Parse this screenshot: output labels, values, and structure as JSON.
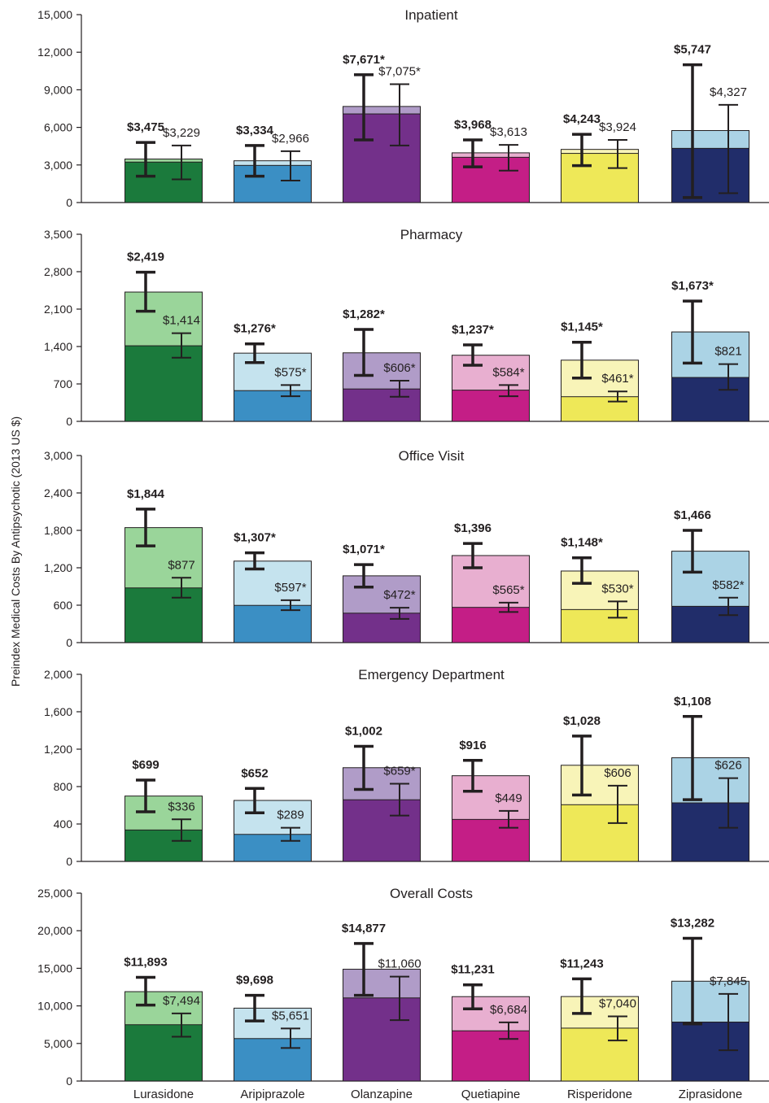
{
  "chart_data": {
    "type": "bar",
    "ylabel": "Preindex Medical Costs By Antipsychotic (2013 US $)",
    "categories": [
      "Lurasidone",
      "Aripiprazole",
      "Olanzapine",
      "Quetiapine",
      "Risperidone",
      "Ziprasidone"
    ],
    "colors": {
      "dark": [
        "#1b7a3c",
        "#3b8fc4",
        "#73308a",
        "#c41e86",
        "#eee858",
        "#212d6a"
      ],
      "light": [
        "#9ad59a",
        "#c5e3ee",
        "#b09cc8",
        "#e8afd0",
        "#f8f4b8",
        "#abd3e5"
      ]
    },
    "panels": [
      {
        "title": "Inpatient",
        "ylim": [
          0,
          15000
        ],
        "yticks": [
          "0",
          "3,000",
          "6,000",
          "9,000",
          "12,000",
          "15,000"
        ],
        "total_values": [
          3475,
          3334,
          7671,
          3968,
          4243,
          5747
        ],
        "total_labels": [
          "$3,475",
          "$3,334",
          "$7,671*",
          "$3,968",
          "$4,243",
          "$5,747"
        ],
        "total_ci": [
          [
            2100,
            4800
          ],
          [
            2100,
            4550
          ],
          [
            5000,
            10200
          ],
          [
            2850,
            5000
          ],
          [
            2950,
            5450
          ],
          [
            400,
            11000
          ]
        ],
        "median_values": [
          3229,
          2966,
          7075,
          3613,
          3924,
          4327
        ],
        "median_labels": [
          "$3,229",
          "$2,966",
          "$7,075*",
          "$3,613",
          "$3,924",
          "$4,327"
        ],
        "median_ci": [
          [
            1850,
            4550
          ],
          [
            1750,
            4100
          ],
          [
            4550,
            9450
          ],
          [
            2550,
            4600
          ],
          [
            2750,
            5000
          ],
          [
            750,
            7800
          ]
        ]
      },
      {
        "title": "Pharmacy",
        "ylim": [
          0,
          3500
        ],
        "yticks": [
          "0",
          "700",
          "1,400",
          "2,100",
          "2,800",
          "3,500"
        ],
        "total_values": [
          2419,
          1276,
          1282,
          1237,
          1145,
          1673
        ],
        "total_labels": [
          "$2,419",
          "$1,276*",
          "$1,282*",
          "$1,237*",
          "$1,145*",
          "$1,673*"
        ],
        "total_ci": [
          [
            2060,
            2790
          ],
          [
            1100,
            1450
          ],
          [
            860,
            1720
          ],
          [
            1050,
            1430
          ],
          [
            810,
            1480
          ],
          [
            1090,
            2250
          ]
        ],
        "median_values": [
          1414,
          575,
          606,
          584,
          461,
          821
        ],
        "median_labels": [
          "$1,414",
          "$575*",
          "$606*",
          "$584*",
          "$461*",
          "$821"
        ],
        "median_ci": [
          [
            1190,
            1650
          ],
          [
            470,
            680
          ],
          [
            460,
            760
          ],
          [
            470,
            680
          ],
          [
            370,
            560
          ],
          [
            590,
            1070
          ]
        ]
      },
      {
        "title": "Office Visit",
        "ylim": [
          0,
          3000
        ],
        "yticks": [
          "0",
          "600",
          "1,200",
          "1,800",
          "2,400",
          "3,000"
        ],
        "total_values": [
          1844,
          1307,
          1071,
          1396,
          1148,
          1466
        ],
        "total_labels": [
          "$1,844",
          "$1,307*",
          "$1,071*",
          "$1,396",
          "$1,148*",
          "$1,466"
        ],
        "total_ci": [
          [
            1550,
            2140
          ],
          [
            1180,
            1440
          ],
          [
            890,
            1250
          ],
          [
            1200,
            1590
          ],
          [
            950,
            1360
          ],
          [
            1130,
            1800
          ]
        ],
        "median_values": [
          877,
          597,
          472,
          565,
          530,
          582
        ],
        "median_labels": [
          "$877",
          "$597*",
          "$472*",
          "$565*",
          "$530*",
          "$582*"
        ],
        "median_ci": [
          [
            720,
            1040
          ],
          [
            520,
            680
          ],
          [
            380,
            560
          ],
          [
            490,
            640
          ],
          [
            400,
            660
          ],
          [
            440,
            720
          ]
        ]
      },
      {
        "title": "Emergency Department",
        "ylim": [
          0,
          2000
        ],
        "yticks": [
          "0",
          "400",
          "800",
          "1,200",
          "1,600",
          "2,000"
        ],
        "total_values": [
          699,
          652,
          1002,
          916,
          1028,
          1108
        ],
        "total_labels": [
          "$699",
          "$652",
          "$1,002",
          "$916",
          "$1,028",
          "$1,108"
        ],
        "total_ci": [
          [
            530,
            870
          ],
          [
            520,
            780
          ],
          [
            770,
            1230
          ],
          [
            750,
            1080
          ],
          [
            710,
            1340
          ],
          [
            660,
            1550
          ]
        ],
        "median_values": [
          336,
          289,
          659,
          449,
          606,
          626
        ],
        "median_labels": [
          "$336",
          "$289",
          "$659*",
          "$449",
          "$606",
          "$626"
        ],
        "median_ci": [
          [
            220,
            450
          ],
          [
            220,
            360
          ],
          [
            490,
            830
          ],
          [
            360,
            540
          ],
          [
            410,
            810
          ],
          [
            360,
            890
          ]
        ]
      },
      {
        "title": "Overall Costs",
        "ylim": [
          0,
          25000
        ],
        "yticks": [
          "0",
          "5,000",
          "10,000",
          "15,000",
          "20,000",
          "25,000"
        ],
        "total_values": [
          11893,
          9698,
          14877,
          11231,
          11243,
          13282
        ],
        "total_labels": [
          "$11,893",
          "$9,698",
          "$14,877",
          "$11,231",
          "$11,243",
          "$13,282"
        ],
        "total_ci": [
          [
            10100,
            13800
          ],
          [
            8000,
            11400
          ],
          [
            11400,
            18300
          ],
          [
            9600,
            12800
          ],
          [
            9000,
            13600
          ],
          [
            7600,
            19000
          ]
        ],
        "median_values": [
          7494,
          5651,
          11060,
          6684,
          7040,
          7845
        ],
        "median_labels": [
          "$7,494",
          "$5,651",
          "$11,060",
          "$6,684",
          "$7,040",
          "$7,845"
        ],
        "median_ci": [
          [
            5900,
            9000
          ],
          [
            4400,
            7000
          ],
          [
            8100,
            13900
          ],
          [
            5600,
            7800
          ],
          [
            5400,
            8600
          ],
          [
            4100,
            11600
          ]
        ]
      }
    ]
  }
}
